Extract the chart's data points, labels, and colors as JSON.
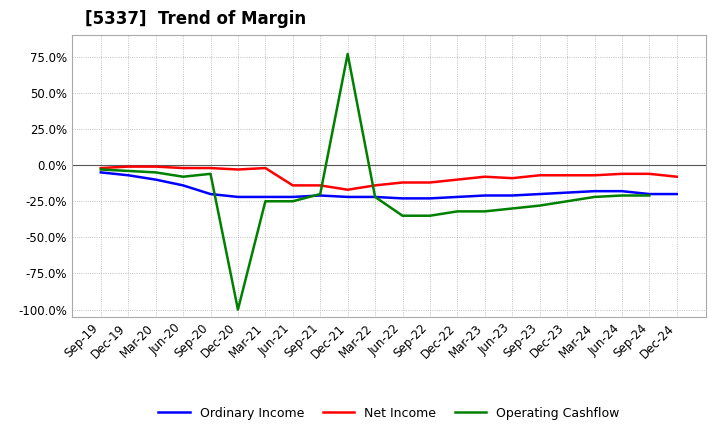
{
  "title": "[5337]  Trend of Margin",
  "x_labels": [
    "Sep-19",
    "Dec-19",
    "Mar-20",
    "Jun-20",
    "Sep-20",
    "Dec-20",
    "Mar-21",
    "Jun-21",
    "Sep-21",
    "Dec-21",
    "Mar-22",
    "Jun-22",
    "Sep-22",
    "Dec-22",
    "Mar-23",
    "Jun-23",
    "Sep-23",
    "Dec-23",
    "Mar-24",
    "Jun-24",
    "Sep-24",
    "Dec-24"
  ],
  "ordinary_income": [
    -5,
    -7,
    -10,
    -14,
    -20,
    -22,
    -22,
    -22,
    -21,
    -22,
    -22,
    -23,
    -23,
    -22,
    -21,
    -21,
    -20,
    -19,
    -18,
    -18,
    -20,
    -20
  ],
  "net_income": [
    -2,
    -1,
    -1,
    -2,
    -2,
    -3,
    -2,
    -14,
    -14,
    -17,
    -14,
    -12,
    -12,
    -10,
    -8,
    -9,
    -7,
    -7,
    -7,
    -6,
    -6,
    -8
  ],
  "operating_cashflow": [
    -3,
    -4,
    -5,
    -8,
    -6,
    -100,
    -25,
    -25,
    -20,
    77,
    -22,
    -35,
    -35,
    -32,
    -32,
    -30,
    -28,
    -25,
    -22,
    -21,
    -21,
    null
  ],
  "ylim": [
    -105,
    90
  ],
  "yticks": [
    -100,
    -75,
    -50,
    -25,
    0,
    25,
    50,
    75
  ],
  "line_colors": {
    "ordinary_income": "#0000ff",
    "net_income": "#ff0000",
    "operating_cashflow": "#008000"
  },
  "legend_labels": [
    "Ordinary Income",
    "Net Income",
    "Operating Cashflow"
  ],
  "background_color": "#ffffff",
  "plot_bg_color": "#ffffff",
  "grid_color": "#b0b0b0",
  "title_fontsize": 12,
  "axis_fontsize": 8.5
}
